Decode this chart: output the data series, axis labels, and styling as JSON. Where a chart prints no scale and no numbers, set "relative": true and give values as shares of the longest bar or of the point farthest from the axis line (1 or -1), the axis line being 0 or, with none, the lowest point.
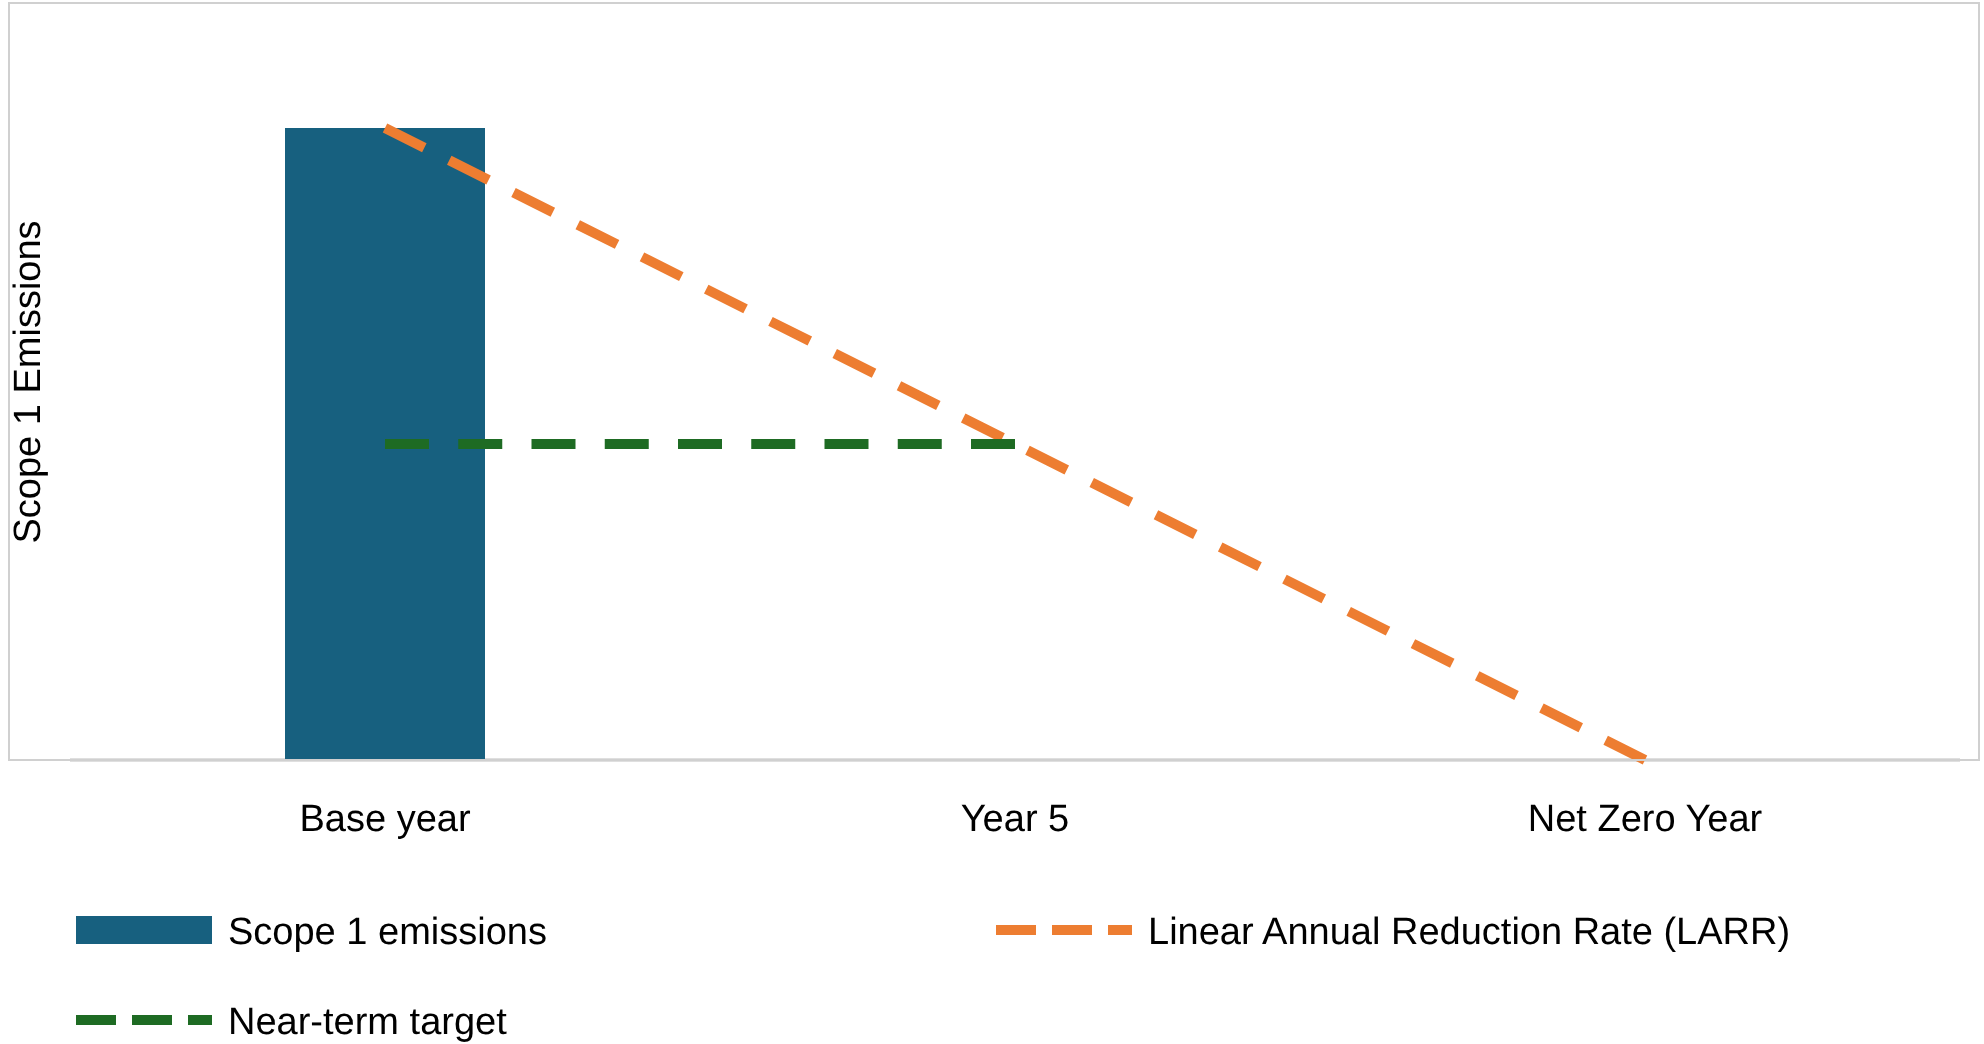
{
  "chart_data": {
    "type": "bar",
    "relative": true,
    "ylabel": "Scope 1 Emissions",
    "categories": [
      "Base year",
      "Year 5",
      "Net Zero Year"
    ],
    "legend": "bottom",
    "series": [
      {
        "name": "Scope 1 emissions",
        "color": "#17607f",
        "values": [
          1,
          null,
          null
        ]
      },
      {
        "name": "Linear Annual Reduction Rate (LARR)",
        "type": "line",
        "line_style": "dashed",
        "color": "#ed7d31",
        "values": [
          1,
          0.5,
          0
        ]
      },
      {
        "name": "Near-term target",
        "type": "line",
        "line_style": "dashed",
        "color": "#1e6b23",
        "values": [
          0.5,
          0.5,
          null
        ]
      }
    ]
  }
}
